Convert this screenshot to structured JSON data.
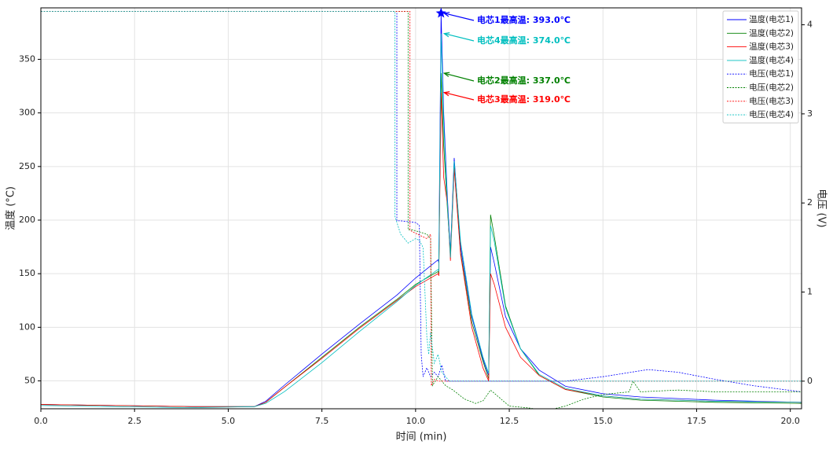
{
  "chart_data": {
    "type": "line",
    "x_label": "时间 (min)",
    "y_label": "温度 (°C)",
    "y2_label": "电压 (V)",
    "xlim": [
      0,
      20.3
    ],
    "ylim": [
      24,
      398
    ],
    "y2lim": [
      -0.31,
      4.19
    ],
    "grid": true,
    "legend": "upper right",
    "xticks": [
      {
        "value": 0,
        "label": "0.0"
      },
      {
        "value": 2.5,
        "label": "2.5"
      },
      {
        "value": 5,
        "label": "5.0"
      },
      {
        "value": 7.5,
        "label": "7.5"
      },
      {
        "value": 10,
        "label": "10.0"
      },
      {
        "value": 12.5,
        "label": "12.5"
      },
      {
        "value": 15,
        "label": "15.0"
      },
      {
        "value": 17.5,
        "label": "17.5"
      },
      {
        "value": 20,
        "label": "20.0"
      }
    ],
    "yticks": [
      50,
      100,
      150,
      200,
      250,
      300,
      350
    ],
    "y2ticks": [
      0,
      1,
      2,
      3,
      4
    ],
    "series": [
      {
        "name": "温度(电芯1)",
        "color": "#0000ff",
        "x": [
          0,
          2,
          4,
          5.7,
          6.0,
          6.5,
          7.5,
          8.5,
          9.5,
          10.0,
          10.6,
          10.62,
          10.68,
          10.75,
          10.85,
          10.93,
          11.03,
          11.2,
          11.5,
          11.8,
          11.95,
          12.0,
          12.1,
          12.4,
          12.8,
          13.3,
          14,
          15,
          16,
          18,
          20.3
        ],
        "values": [
          28,
          27,
          26,
          26,
          31,
          46,
          75,
          103,
          130,
          146,
          163,
          160,
          393,
          300,
          220,
          170,
          258,
          175,
          110,
          70,
          55,
          175,
          160,
          110,
          80,
          60,
          45,
          38,
          35,
          32,
          30
        ]
      },
      {
        "name": "温度(电芯2)",
        "color": "#008000",
        "x": [
          0,
          2,
          4,
          5.7,
          6.0,
          6.5,
          7.5,
          8.5,
          9.5,
          10.0,
          10.6,
          10.62,
          10.68,
          10.75,
          10.85,
          10.93,
          11.03,
          11.2,
          11.5,
          11.8,
          11.95,
          12.0,
          12.1,
          12.4,
          12.8,
          13.3,
          14,
          15,
          16,
          18,
          20.3
        ],
        "values": [
          28,
          27,
          26,
          26,
          30,
          44,
          72,
          100,
          126,
          140,
          152,
          150,
          337,
          270,
          210,
          168,
          250,
          170,
          105,
          68,
          52,
          205,
          185,
          120,
          80,
          55,
          42,
          35,
          32,
          30,
          29
        ]
      },
      {
        "name": "温度(电芯3)",
        "color": "#ff0000",
        "x": [
          0,
          2,
          4,
          5.7,
          6.0,
          6.5,
          7.5,
          8.5,
          9.5,
          10.0,
          10.6,
          10.62,
          10.68,
          10.75,
          10.85,
          10.93,
          11.03,
          11.2,
          11.5,
          11.8,
          11.95,
          12.0,
          12.1,
          12.4,
          12.8,
          13.3,
          14,
          15,
          16,
          18,
          20.3
        ],
        "values": [
          28,
          27,
          26,
          26,
          30,
          44,
          71,
          99,
          125,
          138,
          150,
          148,
          319,
          240,
          215,
          162,
          248,
          168,
          100,
          62,
          50,
          150,
          140,
          100,
          72,
          55,
          42,
          36,
          33,
          31,
          30
        ]
      },
      {
        "name": "温度(电芯4)",
        "color": "#00bfbf",
        "x": [
          0,
          2,
          4,
          5.7,
          6.0,
          6.5,
          7.5,
          8.5,
          9.5,
          10.0,
          10.6,
          10.62,
          10.68,
          10.75,
          10.85,
          10.93,
          11.03,
          11.2,
          11.5,
          11.8,
          11.95,
          12.0,
          12.1,
          12.4,
          12.8,
          13.3,
          14,
          15,
          16,
          18,
          20.3
        ],
        "values": [
          27,
          26,
          25,
          26,
          29,
          40,
          67,
          96,
          124,
          139,
          154,
          152,
          374,
          290,
          215,
          165,
          255,
          180,
          112,
          72,
          57,
          195,
          180,
          118,
          80,
          56,
          43,
          36,
          33,
          31,
          30
        ]
      },
      {
        "name": "电压(电芯1)",
        "color": "#0000ff",
        "axis": "y2",
        "dash": true,
        "x": [
          0,
          9.5,
          9.5,
          9.6,
          10.0,
          10.1,
          10.15,
          10.2,
          10.3,
          10.4,
          10.5,
          10.6,
          10.7,
          10.8,
          11,
          12,
          14,
          15,
          16.2,
          17,
          18,
          19,
          20.3
        ],
        "values": [
          4.15,
          4.15,
          1.8,
          1.8,
          1.78,
          1.75,
          0.3,
          0.05,
          0.15,
          0.05,
          0.1,
          0.05,
          0.18,
          0,
          0,
          0,
          0,
          0.05,
          0.13,
          0.1,
          0.02,
          -0.05,
          -0.12
        ]
      },
      {
        "name": "电压(电芯2)",
        "color": "#008000",
        "axis": "y2",
        "dash": true,
        "x": [
          0,
          9.8,
          9.8,
          9.9,
          10.3,
          10.4,
          10.45,
          10.6,
          10.8,
          11.0,
          11.3,
          11.6,
          11.8,
          12.0,
          12.5,
          13.0,
          13.5,
          14,
          14.5,
          15,
          15.7,
          15.8,
          16,
          17,
          18,
          20.3
        ],
        "values": [
          4.15,
          4.15,
          1.7,
          1.7,
          1.65,
          1.6,
          -0.05,
          0.05,
          -0.05,
          -0.1,
          -0.2,
          -0.25,
          -0.22,
          -0.1,
          -0.28,
          -0.3,
          -0.33,
          -0.28,
          -0.2,
          -0.15,
          -0.12,
          0,
          -0.12,
          -0.1,
          -0.12,
          -0.12
        ]
      },
      {
        "name": "电压(电芯3)",
        "color": "#ff0000",
        "axis": "y2",
        "dash": true,
        "x": [
          0,
          9.85,
          9.85,
          9.9,
          10.3,
          10.4,
          10.42,
          10.5,
          10.6,
          10.8,
          12,
          20.3
        ],
        "values": [
          4.15,
          4.15,
          1.7,
          1.68,
          1.6,
          1.65,
          -0.05,
          0.02,
          0,
          0,
          0,
          0
        ]
      },
      {
        "name": "电压(电芯4)",
        "color": "#00bfbf",
        "axis": "y2",
        "dash": true,
        "x": [
          0,
          9.45,
          9.45,
          9.6,
          9.8,
          10.0,
          10.1,
          10.2,
          10.3,
          10.35,
          10.4,
          10.5,
          10.6,
          10.7,
          10.9,
          12,
          20.3
        ],
        "values": [
          4.15,
          4.15,
          1.85,
          1.65,
          1.55,
          1.6,
          1.58,
          1.5,
          0.5,
          0.3,
          0.55,
          0.2,
          0.3,
          0.1,
          0,
          0,
          0
        ]
      }
    ],
    "annotations": [
      {
        "text": "电芯1最高温: 393.0℃",
        "x": 10.68,
        "y": 393,
        "color": "#0000ff",
        "marker": "star"
      },
      {
        "text": "电芯4最高温: 374.0℃",
        "x": 10.68,
        "y": 374,
        "color": "#00bfbf"
      },
      {
        "text": "电芯2最高温: 337.0℃",
        "x": 10.68,
        "y": 337,
        "color": "#008000"
      },
      {
        "text": "电芯3最高温: 319.0℃",
        "x": 10.68,
        "y": 319,
        "color": "#ff0000"
      }
    ]
  }
}
